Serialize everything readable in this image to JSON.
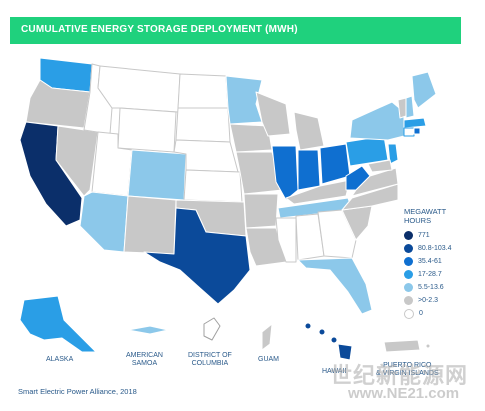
{
  "title": "CUMULATIVE ENERGY STORAGE DEPLOYMENT (MWH)",
  "legend": {
    "title_line1": "MEGAWATT",
    "title_line2": "HOURS",
    "items": [
      {
        "label": "771",
        "color": "#0b2f6a"
      },
      {
        "label": "80.8-103.4",
        "color": "#0b4a9a"
      },
      {
        "label": "35.4-61",
        "color": "#0f6fd0"
      },
      {
        "label": "17-28.7",
        "color": "#2a9ee6"
      },
      {
        "label": "5.5-13.6",
        "color": "#8cc8ea"
      },
      {
        "label": ">0-2.3",
        "color": "#c8c8c8"
      },
      {
        "label": "0",
        "color": "#ffffff"
      }
    ]
  },
  "territories": {
    "alaska": "ALASKA",
    "american_samoa_1": "AMERICAN",
    "american_samoa_2": "SAMOA",
    "dc_1": "DISTRICT OF",
    "dc_2": "COLUMBIA",
    "guam": "GUAM",
    "hawaii": "HAWAII",
    "puerto_rico_1": "PUERTO RICO",
    "puerto_rico_2": "& VIRGIN ISLANDS"
  },
  "source": "Smart Electric Power Alliance, 2018",
  "watermark": "世纪新能源网",
  "watermark_url": "www.NE21.com"
}
